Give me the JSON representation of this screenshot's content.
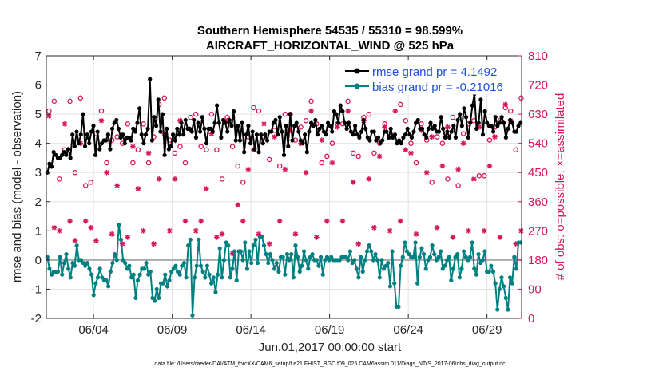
{
  "chart_data": {
    "type": "line",
    "title": "Southern Hemisphere 54535 / 55310 = 98.599%",
    "subtitle": "AIRCRAFT_HORIZONTAL_WIND @ 525 hPa",
    "xlabel": "Jun.01,2017 00:00:00 start",
    "ylabel_left": "rmse and bias (model - observation)",
    "ylabel_right": "# of obs: o=possible; ×=assimilated",
    "footnote": "data file: /Users/raeder/DAI/ATM_forcXX/CAM6_setup/f.e21.FHIST_BGC.f09_025.CAM6assim.011/Diags_NTrS_2017-06/obs_diag_output.nc",
    "xlim": [
      0.5,
      30.7
    ],
    "ylim_left": [
      -2,
      7
    ],
    "ylim_right": [
      0,
      810
    ],
    "x_ticks": [
      3.5,
      8.5,
      13.5,
      18.5,
      23.5,
      28.5
    ],
    "x_tick_labels": [
      "06/04",
      "06/09",
      "06/14",
      "06/19",
      "06/24",
      "06/29"
    ],
    "y_ticks_left": [
      "-2",
      "-1",
      "0",
      "1",
      "2",
      "3",
      "4",
      "5",
      "6",
      "7"
    ],
    "y_ticks_right": [
      "0",
      "90",
      "180",
      "270",
      "360",
      "450",
      "540",
      "630",
      "720",
      "810"
    ],
    "grid": true,
    "legend_position": "top-right",
    "colors": {
      "rmse": "#000000",
      "bias": "#008080",
      "obs": "#d6155b",
      "zero_line": "#aaaaaa",
      "legend_text": "#1f4fe0"
    },
    "series": [
      {
        "name": "rmse grand pr = 4.1492",
        "axis": "left",
        "values": [
          3.0,
          3.3,
          3.2,
          3.7,
          3.6,
          3.5,
          3.5,
          3.6,
          3.7,
          3.6,
          3.8,
          3.5,
          4.3,
          3.9,
          4.4,
          4.0,
          4.3,
          5.0,
          3.9,
          4.3,
          4.0,
          4.4,
          4.6,
          3.6,
          4.4,
          3.8,
          4.0,
          4.1,
          4.1,
          4.3,
          3.8,
          4.5,
          4.7,
          4.8,
          4.5,
          4.2,
          4.3,
          4.0,
          4.2,
          4.2,
          4.1,
          4.5,
          4.4,
          4.7,
          5.2,
          4.3,
          4.0,
          4.3,
          4.5,
          6.2,
          4.1,
          4.9,
          4.6,
          5.5,
          4.4,
          5.0,
          3.6,
          4.5,
          3.8,
          3.9,
          4.3,
          4.1,
          4.5,
          4.3,
          4.7,
          4.3,
          4.8,
          4.5,
          4.5,
          4.4,
          4.8,
          4.2,
          4.7,
          4.4,
          4.9,
          4.5,
          4.0,
          4.5,
          4.5,
          4.4,
          4.7,
          5.3,
          4.7,
          4.2,
          4.8,
          4.7,
          4.4,
          4.8,
          4.6,
          5.1,
          4.1,
          4.6,
          4.1,
          4.7,
          3.7,
          4.3,
          4.6,
          4.0,
          4.4,
          3.8,
          4.3,
          3.7,
          4.3,
          4.0,
          4.3,
          4.1,
          4.4,
          4.4,
          4.7,
          4.8,
          4.3,
          4.9,
          4.4,
          3.6,
          4.6,
          3.9,
          5.0,
          4.1,
          4.6,
          4.7,
          4.4,
          4.1,
          4.0,
          4.3,
          3.7,
          4.4,
          4.7,
          4.6,
          4.8,
          4.3,
          4.5,
          4.6,
          4.4,
          4.3,
          4.7,
          4.6,
          4.4,
          5.1,
          5.0,
          4.7,
          5.3,
          5.1,
          4.7,
          4.5,
          4.7,
          4.4,
          4.3,
          4.6,
          4.3,
          4.2,
          4.4,
          4.8,
          4.5,
          4.2,
          4.1,
          4.4,
          4.4,
          4.1,
          4.2,
          4.0,
          4.1,
          4.4,
          4.4,
          4.2,
          4.5,
          4.2,
          4.3,
          4.0,
          4.1,
          4.0,
          4.2,
          4.3,
          4.5,
          4.3,
          4.2,
          4.4,
          4.7,
          4.8,
          4.5,
          4.5,
          4.3,
          4.2,
          4.5,
          4.7,
          4.5,
          4.6,
          4.4,
          4.4,
          4.9,
          4.5,
          4.2,
          4.4,
          4.2,
          4.4,
          4.6,
          4.2,
          4.8,
          5.0,
          4.6,
          5.2,
          4.9,
          4.2,
          4.7,
          5.3,
          5.7,
          4.5,
          4.7,
          5.5,
          4.3,
          5.1,
          4.7,
          4.6,
          4.6,
          4.4,
          4.9,
          4.6,
          4.7,
          4.9,
          4.7,
          4.2,
          4.5,
          4.8,
          4.7,
          4.4,
          4.4,
          4.6,
          4.7
        ]
      },
      {
        "name": "bias grand pr = -0.21016",
        "axis": "left",
        "values": [
          0.1,
          -0.3,
          -0.5,
          -0.4,
          -0.4,
          -0.4,
          0.1,
          -0.5,
          -0.1,
          0.2,
          -0.3,
          -0.6,
          -0.1,
          -0.2,
          0.5,
          0.0,
          0.0,
          -0.1,
          -0.2,
          -0.1,
          -0.3,
          -0.5,
          -1.2,
          -0.8,
          -0.6,
          -0.3,
          -0.6,
          -0.7,
          -0.7,
          -0.9,
          -0.4,
          -0.1,
          0.2,
          0.0,
          1.2,
          0.7,
          0.0,
          -0.1,
          -0.3,
          -0.2,
          -0.6,
          -0.5,
          -1.3,
          -0.7,
          -0.5,
          -0.3,
          -0.3,
          -0.1,
          -0.5,
          -0.4,
          -1.3,
          -1.4,
          -1.0,
          -1.3,
          -0.8,
          -0.8,
          -0.5,
          -0.9,
          -0.7,
          -0.4,
          -0.3,
          -0.2,
          -0.4,
          -0.5,
          -0.2,
          -0.1,
          -0.6,
          0.5,
          0.7,
          -1.9,
          -0.6,
          -0.2,
          0.7,
          -0.2,
          -0.4,
          -0.6,
          -0.2,
          -0.5,
          -0.8,
          -0.6,
          -1.1,
          -0.5,
          0.4,
          -0.6,
          0.0,
          0.6,
          0.5,
          -0.6,
          -0.3,
          0.3,
          -0.7,
          0.3,
          0.3,
          0.0,
          0.6,
          -0.3,
          0.3,
          -0.1,
          0.5,
          0.7,
          -0.1,
          0.8,
          0.8,
          0.5,
          0.2,
          -0.1,
          0.2,
          0.0,
          -0.3,
          -0.1,
          -0.4,
          0.1,
          0.1,
          -0.5,
          0.2,
          0.0,
          0.2,
          -0.6,
          0.5,
          0.1,
          -0.4,
          -0.2,
          0.3,
          0.0,
          -0.3,
          0.1,
          0.2,
          0.0,
          0.0,
          -0.2,
          0.1,
          -0.5,
          0.0,
          0.1,
          0.0,
          0.1,
          0.0,
          0.0,
          0.0,
          0.0,
          0.1,
          0.1,
          0.1,
          0.0,
          0.3,
          -0.1,
          0.0,
          -0.3,
          -0.6,
          0.1,
          -0.4,
          0.0,
          0.3,
          0.5,
          0.3,
          0.0,
          0.2,
          0.0,
          -0.6,
          0.0,
          -0.3,
          -0.2,
          -0.1,
          -0.9,
          0.3,
          -0.8,
          -1.6,
          -1.6,
          -0.2,
          0.1,
          0.6,
          0.3,
          0.2,
          0.1,
          0.1,
          0.6,
          -0.8,
          0.1,
          0.4,
          0.2,
          -0.3,
          0.0,
          0.1,
          0.5,
          0.2,
          0.0,
          0.1,
          0.3,
          -0.3,
          -0.2,
          0.0,
          0.1,
          -0.7,
          -0.3,
          0.1,
          0.2,
          -0.6,
          -0.3,
          0.3,
          0.1,
          0.0,
          0.1,
          0.6,
          -0.3,
          -0.5,
          0.2,
          -0.1,
          0.0,
          0.3,
          -0.4,
          -0.4,
          -0.2,
          -0.4,
          -0.8,
          -1.7,
          -1.0,
          -0.6,
          -0.9,
          -1.3,
          -1.7,
          -0.6,
          -0.8,
          0.1,
          -0.3,
          0.6,
          0.6
        ]
      }
    ],
    "obs_possible": [
      [
        0.67,
        640
      ],
      [
        1.0,
        670
      ],
      [
        1.33,
        430
      ],
      [
        1.67,
        520
      ],
      [
        2.0,
        670
      ],
      [
        2.33,
        450
      ],
      [
        2.67,
        680
      ],
      [
        3.0,
        410
      ],
      [
        3.33,
        420
      ],
      [
        3.67,
        570
      ],
      [
        4.0,
        640
      ],
      [
        4.33,
        480
      ],
      [
        4.67,
        550
      ],
      [
        5.0,
        560
      ],
      [
        5.33,
        540
      ],
      [
        5.67,
        600
      ],
      [
        6.0,
        480
      ],
      [
        6.33,
        520
      ],
      [
        6.67,
        600
      ],
      [
        7.0,
        480
      ],
      [
        7.33,
        560
      ],
      [
        7.67,
        660
      ],
      [
        8.0,
        680
      ],
      [
        8.33,
        550
      ],
      [
        8.67,
        510
      ],
      [
        9.0,
        530
      ],
      [
        9.33,
        480
      ],
      [
        9.67,
        620
      ],
      [
        10.0,
        630
      ],
      [
        10.33,
        530
      ],
      [
        10.67,
        520
      ],
      [
        11.0,
        630
      ],
      [
        11.33,
        520
      ],
      [
        11.67,
        430
      ],
      [
        12.0,
        620
      ],
      [
        12.33,
        530
      ],
      [
        12.67,
        470
      ],
      [
        13.0,
        420
      ],
      [
        13.33,
        560
      ],
      [
        13.67,
        650
      ],
      [
        14.0,
        640
      ],
      [
        14.33,
        560
      ],
      [
        14.67,
        490
      ],
      [
        15.0,
        580
      ],
      [
        15.33,
        470
      ],
      [
        15.67,
        630
      ],
      [
        16.0,
        630
      ],
      [
        16.33,
        550
      ],
      [
        16.67,
        590
      ],
      [
        17.0,
        610
      ],
      [
        17.33,
        670
      ],
      [
        17.67,
        600
      ],
      [
        18.0,
        480
      ],
      [
        18.33,
        500
      ],
      [
        18.67,
        540
      ],
      [
        19.0,
        600
      ],
      [
        19.33,
        600
      ],
      [
        19.67,
        670
      ],
      [
        20.0,
        510
      ],
      [
        20.33,
        500
      ],
      [
        20.67,
        620
      ],
      [
        21.0,
        630
      ],
      [
        21.33,
        510
      ],
      [
        21.67,
        540
      ],
      [
        22.0,
        600
      ],
      [
        22.33,
        560
      ],
      [
        22.67,
        710
      ],
      [
        23.0,
        660
      ],
      [
        23.33,
        610
      ],
      [
        23.67,
        540
      ],
      [
        24.0,
        480
      ],
      [
        24.33,
        600
      ],
      [
        24.67,
        550
      ],
      [
        25.0,
        420
      ],
      [
        25.33,
        560
      ],
      [
        25.67,
        540
      ],
      [
        26.0,
        430
      ],
      [
        26.33,
        620
      ],
      [
        26.67,
        410
      ],
      [
        27.0,
        570
      ],
      [
        27.33,
        600
      ],
      [
        27.67,
        610
      ],
      [
        28.0,
        440
      ],
      [
        28.33,
        440
      ],
      [
        28.67,
        550
      ],
      [
        29.0,
        590
      ],
      [
        29.33,
        610
      ],
      [
        29.67,
        650
      ],
      [
        30.0,
        640
      ],
      [
        30.33,
        520
      ],
      [
        30.67,
        680
      ]
    ],
    "obs_assimilated": [
      [
        0.67,
        625
      ],
      [
        1.0,
        280
      ],
      [
        1.33,
        270
      ],
      [
        1.67,
        600
      ],
      [
        2.0,
        300
      ],
      [
        2.33,
        240
      ],
      [
        2.67,
        540
      ],
      [
        3.0,
        300
      ],
      [
        3.33,
        280
      ],
      [
        3.67,
        240
      ],
      [
        4.0,
        610
      ],
      [
        4.33,
        450
      ],
      [
        4.67,
        260
      ],
      [
        5.0,
        410
      ],
      [
        5.33,
        230
      ],
      [
        5.67,
        250
      ],
      [
        6.0,
        530
      ],
      [
        6.33,
        400
      ],
      [
        6.67,
        270
      ],
      [
        7.0,
        510
      ],
      [
        7.33,
        230
      ],
      [
        7.67,
        430
      ],
      [
        8.0,
        570
      ],
      [
        8.33,
        270
      ],
      [
        8.67,
        430
      ],
      [
        9.0,
        610
      ],
      [
        9.33,
        300
      ],
      [
        9.67,
        580
      ],
      [
        10.0,
        270
      ],
      [
        10.33,
        300
      ],
      [
        10.67,
        400
      ],
      [
        11.0,
        570
      ],
      [
        11.33,
        250
      ],
      [
        11.67,
        260
      ],
      [
        12.0,
        610
      ],
      [
        12.33,
        200
      ],
      [
        12.67,
        350
      ],
      [
        13.0,
        300
      ],
      [
        13.33,
        460
      ],
      [
        13.67,
        520
      ],
      [
        14.0,
        260
      ],
      [
        14.33,
        600
      ],
      [
        14.67,
        230
      ],
      [
        15.0,
        560
      ],
      [
        15.33,
        300
      ],
      [
        15.67,
        460
      ],
      [
        16.0,
        580
      ],
      [
        16.33,
        260
      ],
      [
        16.67,
        540
      ],
      [
        17.0,
        450
      ],
      [
        17.33,
        640
      ],
      [
        17.67,
        250
      ],
      [
        18.0,
        550
      ],
      [
        18.33,
        300
      ],
      [
        18.67,
        480
      ],
      [
        19.0,
        590
      ],
      [
        19.33,
        300
      ],
      [
        19.67,
        640
      ],
      [
        20.0,
        420
      ],
      [
        20.33,
        230
      ],
      [
        20.67,
        610
      ],
      [
        21.0,
        430
      ],
      [
        21.33,
        280
      ],
      [
        21.67,
        500
      ],
      [
        22.0,
        590
      ],
      [
        22.33,
        270
      ],
      [
        22.67,
        640
      ],
      [
        23.0,
        300
      ],
      [
        23.33,
        520
      ],
      [
        23.67,
        510
      ],
      [
        24.0,
        260
      ],
      [
        24.33,
        580
      ],
      [
        24.67,
        450
      ],
      [
        25.0,
        560
      ],
      [
        25.33,
        280
      ],
      [
        25.67,
        470
      ],
      [
        26.0,
        590
      ],
      [
        26.33,
        250
      ],
      [
        26.67,
        460
      ],
      [
        27.0,
        540
      ],
      [
        27.33,
        270
      ],
      [
        27.67,
        430
      ],
      [
        28.0,
        590
      ],
      [
        28.33,
        270
      ],
      [
        28.67,
        470
      ],
      [
        29.0,
        560
      ],
      [
        29.33,
        250
      ],
      [
        29.67,
        660
      ],
      [
        30.0,
        610
      ],
      [
        30.33,
        230
      ],
      [
        30.67,
        270
      ]
    ]
  }
}
